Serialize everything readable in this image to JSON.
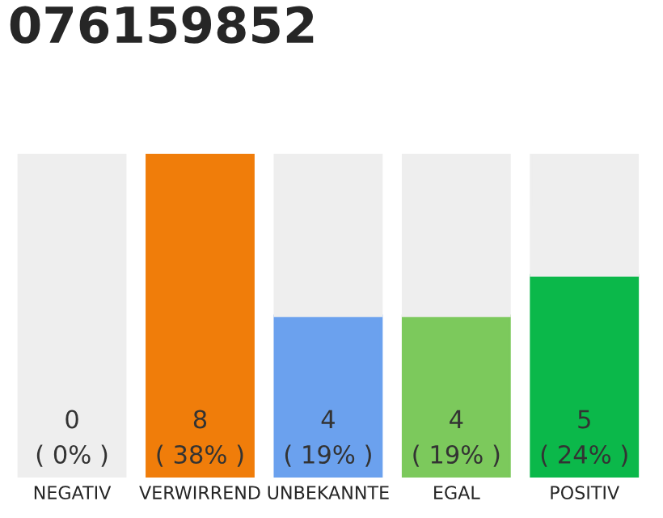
{
  "chart_data": {
    "type": "bar",
    "title": "076159852",
    "categories": [
      "NEGATIV",
      "VERWIRREND",
      "UNBEKANNTE",
      "EGAL",
      "POSITIV"
    ],
    "stacked": true,
    "series": [
      {
        "values": [
          0,
          8,
          4,
          4,
          5
        ],
        "colors": [
          "#7f7f7f",
          "#f07d0a",
          "#6ba1ee",
          "#7cc95c",
          "#0bb84a"
        ],
        "value_labels": [
          "0\n( 0% )",
          "8\n( 38% )",
          "4\n( 19% )",
          "4\n( 19% )",
          "5\n( 24% )"
        ]
      },
      {
        "values": [
          8,
          null,
          4,
          4,
          3
        ],
        "color": "#eeeeee"
      }
    ],
    "ylim": [
      0,
      8
    ],
    "tick_labels": "x"
  }
}
